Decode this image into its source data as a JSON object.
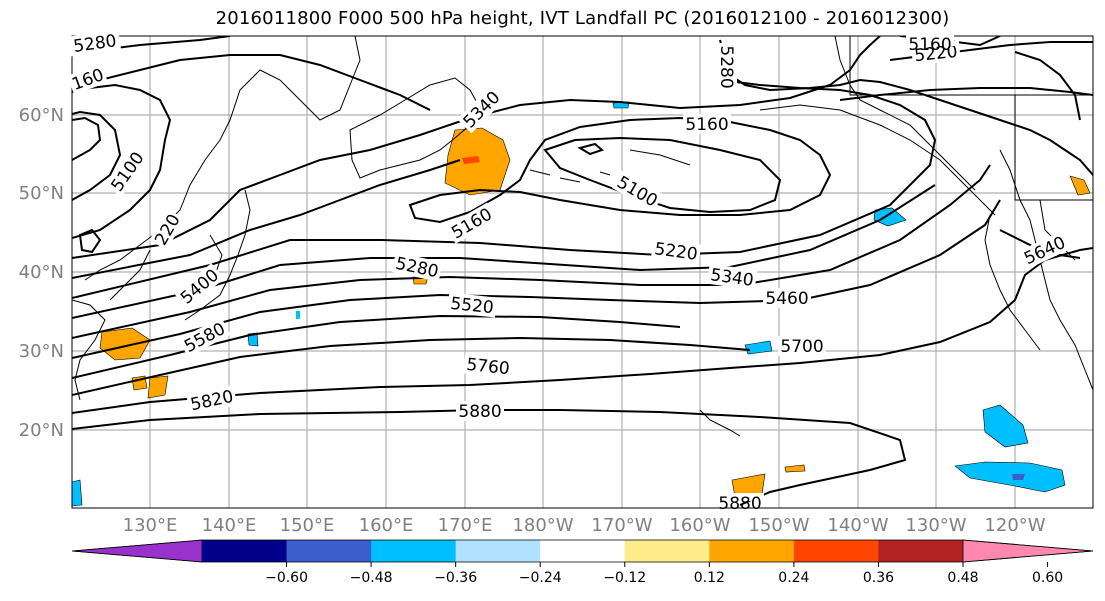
{
  "title": "2016011800 F000 500 hPa height, IVT Landfall PC (2016012100 - 2016012300)",
  "lat_labels": [
    "60°N",
    "50°N",
    "40°N",
    "30°N",
    "20°N"
  ],
  "lon_labels": [
    "130°E",
    "140°E",
    "150°E",
    "160°E",
    "170°E",
    "180°W",
    "170°W",
    "160°W",
    "150°W",
    "140°W",
    "130°W",
    "120°W"
  ],
  "contour_labels": [
    "5280",
    "160",
    "5100",
    "220",
    "5400",
    "5580",
    "5820",
    "5880",
    "5340",
    "5160",
    "5160",
    "5100",
    "5280",
    "5220",
    "5280",
    "5520",
    "5760",
    "5340",
    "5460",
    "5700",
    "5220",
    "5160",
    "5640",
    "5880"
  ],
  "colorbar": {
    "ticks": [
      "−0.60",
      "−0.48",
      "−0.36",
      "−0.24",
      "−0.12",
      "0.12",
      "0.24",
      "0.36",
      "0.48",
      "0.60"
    ],
    "colors": [
      "#9932CC",
      "#00008B",
      "#3A5FCD",
      "#00BFFF",
      "#B0E2FF",
      "#FFFFFF",
      "#FFEC8B",
      "#FFA500",
      "#FF4500",
      "#B22222",
      "#FF88B0"
    ]
  }
}
